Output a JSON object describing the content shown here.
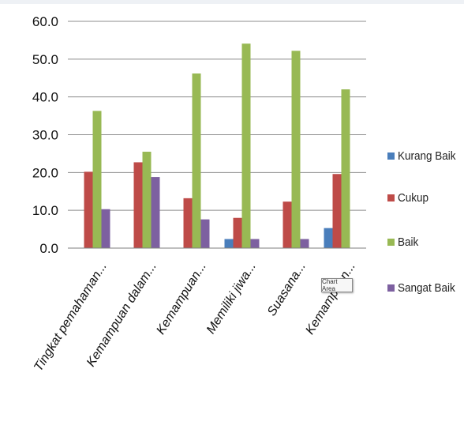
{
  "chart_data": {
    "type": "bar",
    "title": "",
    "xlabel": "",
    "ylabel": "",
    "ylim": [
      0,
      60
    ],
    "yticks": [
      "0.0",
      "10.0",
      "20.0",
      "30.0",
      "40.0",
      "50.0",
      "60.0"
    ],
    "grid": true,
    "legend_position": "right",
    "categories": [
      "Tingkat pemahaman...",
      "Kemampuan dalam...",
      "Kemampuan...",
      "Memiliki jiwa...",
      "Suasana...",
      "Kemampuan..."
    ],
    "series": [
      {
        "name": "Kurang Baik",
        "color": "#4a7ebb",
        "values": [
          0,
          0,
          0,
          2.4,
          0,
          5.3
        ]
      },
      {
        "name": "Cukup",
        "color": "#be4b48",
        "values": [
          20.2,
          22.7,
          13.2,
          8.0,
          12.3,
          19.6
        ]
      },
      {
        "name": "Baik",
        "color": "#98b954",
        "values": [
          36.3,
          25.5,
          46.2,
          54.1,
          52.2,
          42.0
        ]
      },
      {
        "name": "Sangat Baik",
        "color": "#7d60a0",
        "values": [
          10.3,
          18.8,
          7.6,
          2.4,
          2.4,
          0
        ]
      }
    ]
  },
  "tooltip": {
    "text": "Chart Area"
  }
}
